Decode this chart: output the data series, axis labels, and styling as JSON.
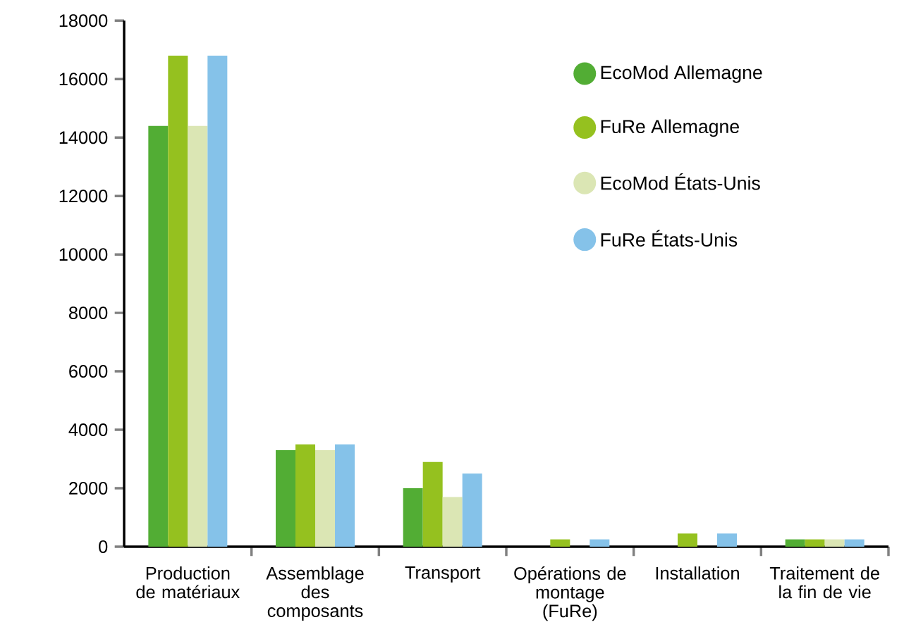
{
  "chart_data": {
    "type": "bar",
    "categories": [
      "Production de matériaux",
      "Assemblage des composants",
      "Transport",
      "Opérations de montage (FuRe)",
      "Installation",
      "Traitement de la fin de vie"
    ],
    "series": [
      {
        "name": "EcoMod Allemagne",
        "color": "#52ad34",
        "values": [
          14400,
          3300,
          2000,
          0,
          0,
          250
        ]
      },
      {
        "name": "FuRe Allemagne",
        "color": "#95c11f",
        "values": [
          16800,
          3500,
          2900,
          250,
          450,
          250
        ]
      },
      {
        "name": "EcoMod États-Unis",
        "color": "#dbe6b4",
        "values": [
          14400,
          3300,
          1700,
          0,
          0,
          250
        ]
      },
      {
        "name": "FuRe États-Unis",
        "color": "#85c2e9",
        "values": [
          16800,
          3500,
          2500,
          250,
          450,
          250
        ]
      }
    ],
    "ylim": [
      0,
      18000
    ],
    "yticks": [
      0,
      2000,
      4000,
      6000,
      8000,
      10000,
      12000,
      14000,
      16000,
      18000
    ],
    "grid": false,
    "legend": "top right"
  }
}
